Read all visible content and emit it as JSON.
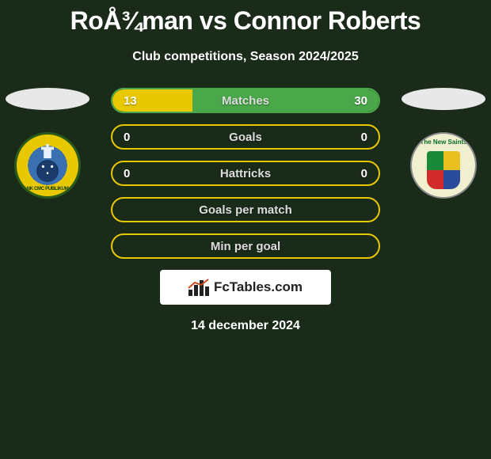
{
  "title": "RoÅ¾man vs Connor Roberts",
  "subtitle": "Club competitions, Season 2024/2025",
  "branding_text": "FcTables.com",
  "date": "14 december 2024",
  "colors": {
    "background": "#1a2b1a",
    "ellipse": "#e8e8e8",
    "left_accent": "#e8c800",
    "right_accent": "#4aa84a",
    "row_border_amber": "#e8c800",
    "row_border_green": "#4aa84a",
    "text_muted": "#dddddd"
  },
  "badges": {
    "left": {
      "label": "NK CMC PUBLIKUM",
      "primary": "#e8c800",
      "secondary": "#3a6fb0"
    },
    "right": {
      "label": "The New Saints",
      "primary": "#f0f0d0"
    }
  },
  "stats": [
    {
      "label": "Matches",
      "left_value": "13",
      "right_value": "30",
      "left_fill_pct": 30,
      "right_fill_pct": 70,
      "left_fill_color": "#e8c800",
      "right_fill_color": "#4aa84a",
      "border_color": "#4aa84a"
    },
    {
      "label": "Goals",
      "left_value": "0",
      "right_value": "0",
      "left_fill_pct": 0,
      "right_fill_pct": 0,
      "left_fill_color": "#e8c800",
      "right_fill_color": "#4aa84a",
      "border_color": "#e8c800"
    },
    {
      "label": "Hattricks",
      "left_value": "0",
      "right_value": "0",
      "left_fill_pct": 0,
      "right_fill_pct": 0,
      "left_fill_color": "#e8c800",
      "right_fill_color": "#4aa84a",
      "border_color": "#e8c800"
    },
    {
      "label": "Goals per match",
      "left_value": "",
      "right_value": "",
      "left_fill_pct": 0,
      "right_fill_pct": 0,
      "left_fill_color": "#e8c800",
      "right_fill_color": "#4aa84a",
      "border_color": "#e8c800"
    },
    {
      "label": "Min per goal",
      "left_value": "",
      "right_value": "",
      "left_fill_pct": 0,
      "right_fill_pct": 0,
      "left_fill_color": "#e8c800",
      "right_fill_color": "#4aa84a",
      "border_color": "#e8c800"
    }
  ]
}
